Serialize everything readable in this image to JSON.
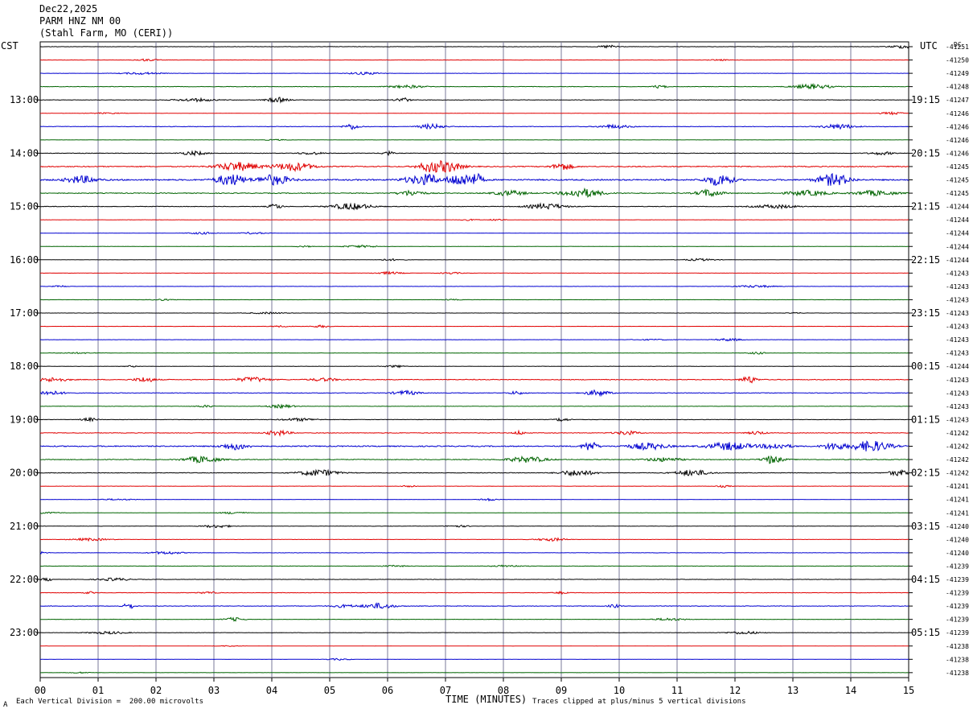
{
  "header": {
    "date": "Dec22,2025",
    "station": "PARM HNZ NM 00",
    "location": "(Stahl Farm, MO (CERI))"
  },
  "left_timezone": "CST",
  "right_timezone": "UTC",
  "dc_label": "DC",
  "footer": {
    "scale_note": "Each Vertical Division =  200.00 microvolts",
    "clip_note": "Traces clipped at plus/minus 5 vertical divisions",
    "corner_mark": "A"
  },
  "chart_data": {
    "type": "line",
    "subtype": "helicorder",
    "xlabel": "TIME (MINUTES)",
    "xlim": [
      0,
      15
    ],
    "x_ticks": [
      "00",
      "01",
      "02",
      "03",
      "04",
      "05",
      "06",
      "07",
      "08",
      "09",
      "10",
      "11",
      "12",
      "13",
      "14",
      "15"
    ],
    "trace_colors": [
      "#000000",
      "#e00000",
      "#0000d0",
      "#006400"
    ],
    "left_hour_labels": [
      "13:00",
      "14:00",
      "15:00",
      "16:00",
      "17:00",
      "18:00",
      "19:00",
      "20:00",
      "21:00",
      "22:00",
      "23:00"
    ],
    "right_hour_labels": [
      "19:15",
      "20:15",
      "21:15",
      "22:15",
      "23:15",
      "00:15",
      "01:15",
      "02:15",
      "03:15",
      "04:15",
      "05:15"
    ],
    "label_rows": [
      4,
      8,
      12,
      16,
      20,
      24,
      28,
      32,
      36,
      40,
      44
    ],
    "dc_offsets": [
      "-41251",
      "-41250",
      "-41249",
      "-41248",
      "-41247",
      "-41246",
      "-41246",
      "-41246",
      "-41246",
      "-41245",
      "-41245",
      "-41245",
      "-41244",
      "-41244",
      "-41244",
      "-41244",
      "-41244",
      "-41243",
      "-41243",
      "-41243",
      "-41243",
      "-41243",
      "-41243",
      "-41243",
      "-41244",
      "-41243",
      "-41243",
      "-41243",
      "-41243",
      "-41242",
      "-41242",
      "-41242",
      "-41242",
      "-41241",
      "-41241",
      "-41241",
      "-41240",
      "-41240",
      "-41240",
      "-41239",
      "-41239",
      "-41239",
      "-41239",
      "-41239",
      "-41239",
      "-41238",
      "-41238",
      "-41238"
    ],
    "trace_activity": [
      0.6,
      0.4,
      0.4,
      0.8,
      0.8,
      0.4,
      0.9,
      0.3,
      0.9,
      1.6,
      2.2,
      1.4,
      1.0,
      0.4,
      0.4,
      0.4,
      0.4,
      0.4,
      0.4,
      0.4,
      0.4,
      0.4,
      0.4,
      0.4,
      0.5,
      1.2,
      1.0,
      0.6,
      0.7,
      1.0,
      1.8,
      1.2,
      1.0,
      0.5,
      0.4,
      0.4,
      0.5,
      0.5,
      0.5,
      0.6,
      0.6,
      0.7,
      0.9,
      0.6,
      0.6,
      0.3,
      0.3,
      0.3
    ]
  }
}
